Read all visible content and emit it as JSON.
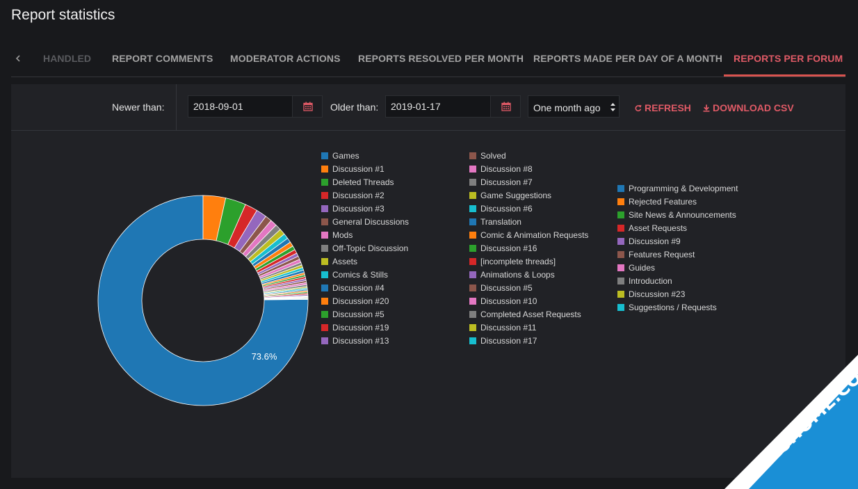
{
  "title": "Report statistics",
  "tabs": [
    {
      "label": "HANDLED",
      "state": "faded"
    },
    {
      "label": "REPORT COMMENTS",
      "state": "normal"
    },
    {
      "label": "MODERATOR ACTIONS",
      "state": "normal"
    },
    {
      "label": "REPORTS RESOLVED PER MONTH",
      "state": "normal"
    },
    {
      "label": "REPORTS MADE PER DAY OF A MONTH",
      "state": "normal"
    },
    {
      "label": "REPORTS PER FORUM",
      "state": "active"
    }
  ],
  "tab_prev_icon": "chevron-left-icon",
  "filters": {
    "newer_label": "Newer than:",
    "newer_value": "2018-09-01",
    "older_label": "Older than:",
    "older_value": "2019-01-17",
    "range_value": "One month ago",
    "calendar_icon": "calendar-icon",
    "refresh_label": "REFRESH",
    "download_label": "DOWNLOAD CSV",
    "accent_color": "#e05a66"
  },
  "watermark": {
    "text": "TECHIESHOME.COM",
    "color": "#1a8fd6"
  },
  "chart_data": {
    "type": "pie",
    "donut": true,
    "visible_slice_label": "73.6%",
    "slices": [
      {
        "label": "Games",
        "value": 73.6,
        "color": "#1f77b4"
      },
      {
        "label": "Discussion #1",
        "value": 3.4,
        "color": "#ff7f0e"
      },
      {
        "label": "Deleted Threads",
        "value": 3.1,
        "color": "#2ca02c"
      },
      {
        "label": "Discussion #2",
        "value": 1.9,
        "color": "#d62728"
      },
      {
        "label": "Discussion #3",
        "value": 1.6,
        "color": "#9467bd"
      },
      {
        "label": "General Discussions",
        "value": 1.0,
        "color": "#8c564b"
      },
      {
        "label": "Mods",
        "value": 1.0,
        "color": "#e377c2"
      },
      {
        "label": "Off-Topic Discussion",
        "value": 0.9,
        "color": "#7f7f7f"
      },
      {
        "label": "Assets",
        "value": 0.9,
        "color": "#bcbd22"
      },
      {
        "label": "Comics & Stills",
        "value": 0.8,
        "color": "#17becf"
      },
      {
        "label": "Discussion #4",
        "value": 0.7,
        "color": "#1f77b4"
      },
      {
        "label": "Discussion #20",
        "value": 0.7,
        "color": "#ff7f0e"
      },
      {
        "label": "Discussion #5",
        "value": 0.6,
        "color": "#2ca02c"
      },
      {
        "label": "Discussion #19",
        "value": 0.6,
        "color": "#d62728"
      },
      {
        "label": "Discussion #13",
        "value": 0.5,
        "color": "#9467bd"
      },
      {
        "label": "Solved",
        "value": 0.5,
        "color": "#8c564b"
      },
      {
        "label": "Discussion #8",
        "value": 0.5,
        "color": "#e377c2"
      },
      {
        "label": "Discussion #7",
        "value": 0.4,
        "color": "#7f7f7f"
      },
      {
        "label": "Game Suggestions",
        "value": 0.4,
        "color": "#bcbd22"
      },
      {
        "label": "Discussion #6",
        "value": 0.4,
        "color": "#17becf"
      },
      {
        "label": "Translation",
        "value": 0.4,
        "color": "#1f77b4"
      },
      {
        "label": "Comic & Animation Requests",
        "value": 0.3,
        "color": "#ff7f0e"
      },
      {
        "label": "Discussion #16",
        "value": 0.3,
        "color": "#2ca02c"
      },
      {
        "label": "[incomplete threads]",
        "value": 0.3,
        "color": "#d62728"
      },
      {
        "label": "Animations & Loops",
        "value": 0.3,
        "color": "#9467bd"
      },
      {
        "label": "Discussion #5",
        "value": 0.3,
        "color": "#8c564b"
      },
      {
        "label": "Discussion #10",
        "value": 0.3,
        "color": "#e377c2"
      },
      {
        "label": "Completed Asset Requests",
        "value": 0.3,
        "color": "#7f7f7f"
      },
      {
        "label": "Discussion #11",
        "value": 0.2,
        "color": "#bcbd22"
      },
      {
        "label": "Discussion #17",
        "value": 0.2,
        "color": "#17becf"
      },
      {
        "label": "Programming & Development",
        "value": 0.2,
        "color": "#1f77b4"
      },
      {
        "label": "Rejected Features",
        "value": 0.2,
        "color": "#ff7f0e"
      },
      {
        "label": "Site News & Announcements",
        "value": 0.2,
        "color": "#2ca02c"
      },
      {
        "label": "Asset Requests",
        "value": 0.2,
        "color": "#d62728"
      },
      {
        "label": "Discussion #9",
        "value": 0.2,
        "color": "#9467bd"
      },
      {
        "label": "Features Request",
        "value": 0.1,
        "color": "#8c564b"
      },
      {
        "label": "Guides",
        "value": 0.1,
        "color": "#e377c2"
      },
      {
        "label": "Introduction",
        "value": 0.1,
        "color": "#7f7f7f"
      },
      {
        "label": "Discussion #23",
        "value": 0.1,
        "color": "#bcbd22"
      },
      {
        "label": "Suggestions / Requests",
        "value": 0.1,
        "color": "#17becf"
      }
    ],
    "legend": {
      "col1": [
        0,
        15
      ],
      "col2": [
        15,
        30
      ],
      "col3": [
        30,
        40
      ]
    }
  }
}
